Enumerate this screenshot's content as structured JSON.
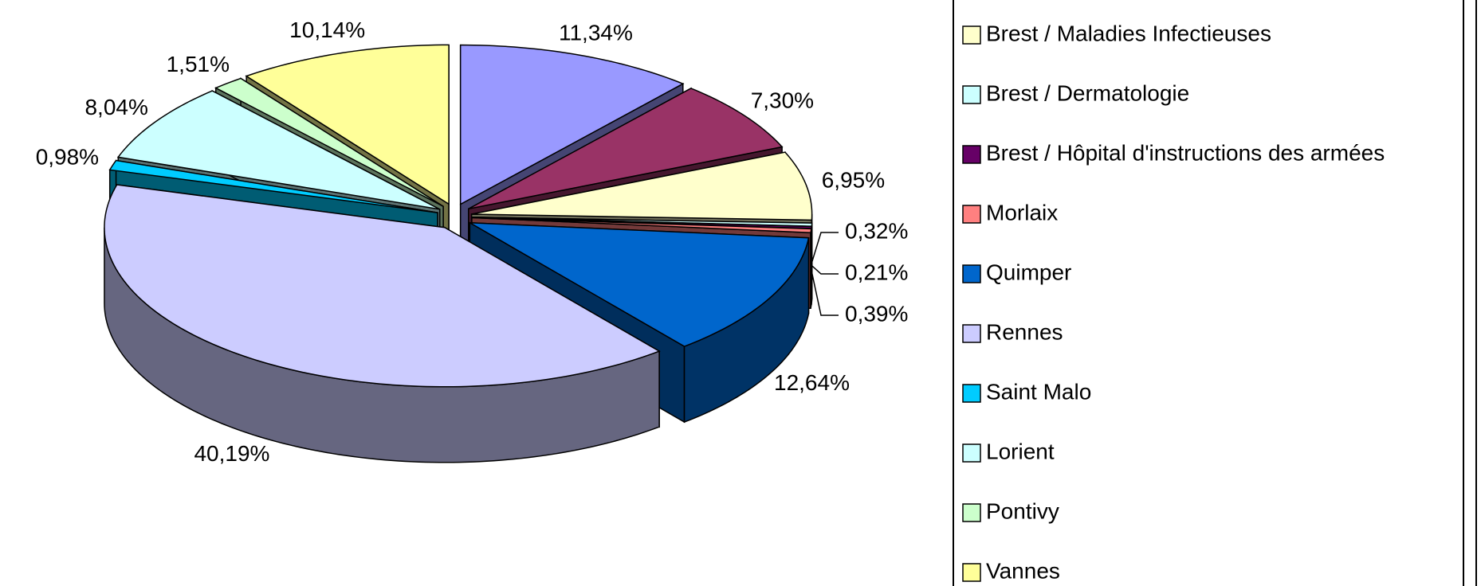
{
  "chart_data": {
    "type": "pie3d",
    "categories": [
      null,
      null,
      "Brest / Maladies Infectieuses",
      "Brest / Dermatologie",
      "Brest / Hôpital d'instructions des armées",
      "Morlaix",
      "Quimper",
      "Rennes",
      "Saint Malo",
      "Lorient",
      "Pontivy",
      "Vannes"
    ],
    "values": [
      11.34,
      7.3,
      6.95,
      0.32,
      0.21,
      0.39,
      12.64,
      40.19,
      0.98,
      8.04,
      1.51,
      10.14
    ],
    "value_labels": [
      "11,34%",
      "7,30%",
      "6,95%",
      "0,32%",
      "0,21%",
      "0,39%",
      "12,64%",
      "40,19%",
      "0,98%",
      "8,04%",
      "1,51%",
      "10,14%"
    ],
    "colors": [
      "#9999ff",
      "#993366",
      "#ffffcc",
      "#ccffff",
      "#660066",
      "#ff8080",
      "#0066cc",
      "#ccccff",
      "#00ccff",
      "#ccffff",
      "#ccffcc",
      "#ffff99"
    ],
    "legend": "right"
  }
}
